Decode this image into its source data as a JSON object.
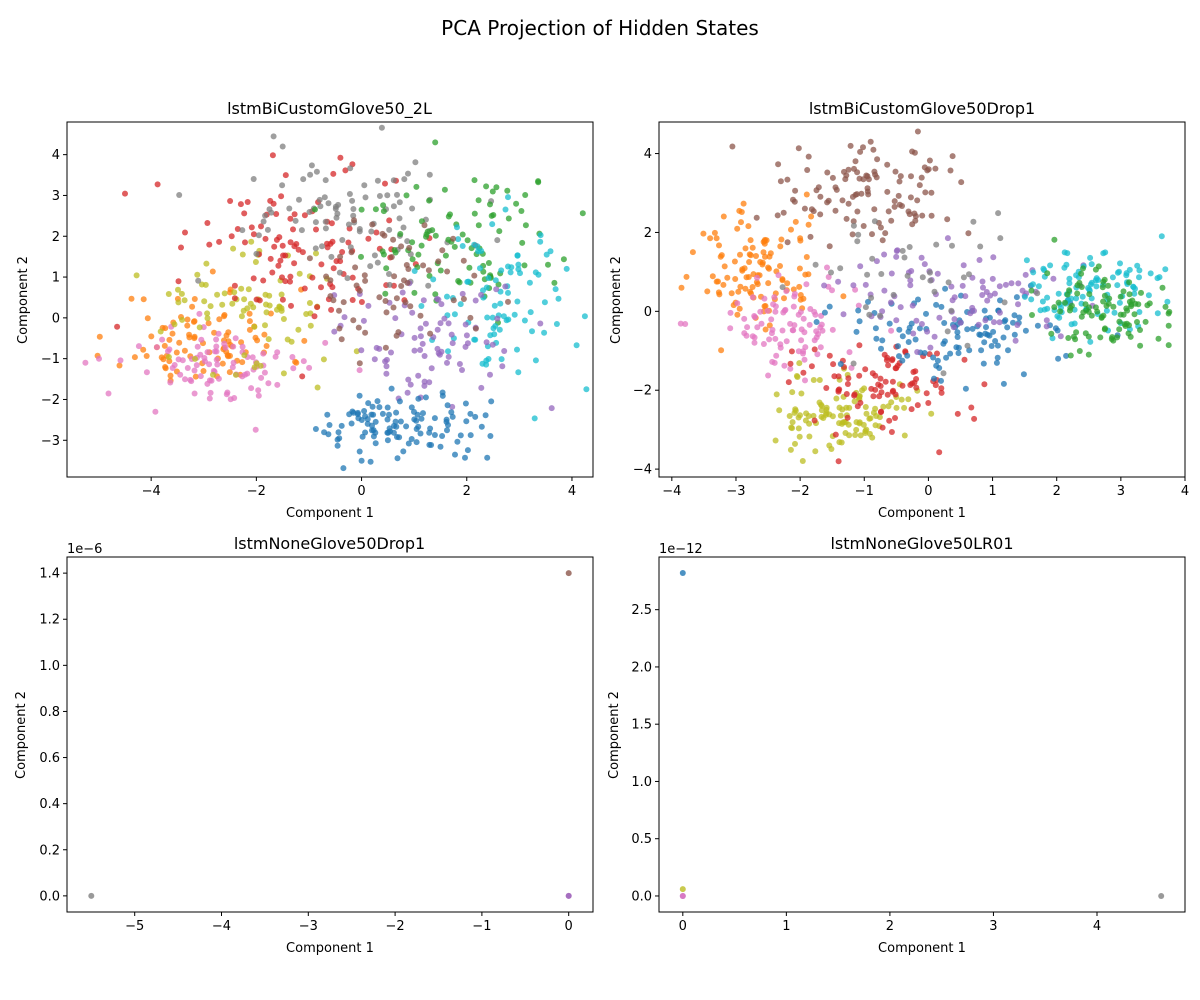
{
  "figure": {
    "suptitle": "PCA Projection of Hidden States"
  },
  "chart_data": [
    {
      "type": "scatter",
      "title": "lstmBiCustomGlove50_2L",
      "xlabel": "Component 1",
      "ylabel": "Component 2",
      "xlim": [
        -5.6,
        4.4
      ],
      "ylim": [
        -3.9,
        4.8
      ],
      "xticks": [
        -4,
        -2,
        0,
        2,
        4
      ],
      "xticklabels": [
        "−4",
        "−2",
        "0",
        "2",
        "4"
      ],
      "yticks": [
        -3,
        -2,
        -1,
        0,
        1,
        2,
        3,
        4
      ],
      "yticklabels": [
        "−3",
        "−2",
        "−1",
        "0",
        "1",
        "2",
        "3",
        "4"
      ],
      "offset_text": "",
      "point_alpha": 0.75,
      "clusters": [
        {
          "color": "#ff7f0e",
          "cx": -3.0,
          "cy": -0.5,
          "sx": 0.8,
          "sy": 0.6,
          "n": 90,
          "seed": 11
        },
        {
          "color": "#e377c2",
          "cx": -2.6,
          "cy": -1.2,
          "sx": 0.9,
          "sy": 0.5,
          "n": 90,
          "seed": 12
        },
        {
          "color": "#bcbd22",
          "cx": -2.2,
          "cy": 0.2,
          "sx": 0.9,
          "sy": 0.8,
          "n": 80,
          "seed": 13
        },
        {
          "color": "#d62728",
          "cx": -1.0,
          "cy": 1.8,
          "sx": 1.2,
          "sy": 1.0,
          "n": 110,
          "seed": 14
        },
        {
          "color": "#7f7f7f",
          "cx": 0.0,
          "cy": 2.6,
          "sx": 1.1,
          "sy": 0.8,
          "n": 90,
          "seed": 15
        },
        {
          "color": "#2ca02c",
          "cx": 1.9,
          "cy": 1.9,
          "sx": 0.9,
          "sy": 0.8,
          "n": 90,
          "seed": 16
        },
        {
          "color": "#17becf",
          "cx": 2.6,
          "cy": 0.3,
          "sx": 0.7,
          "sy": 1.0,
          "n": 90,
          "seed": 17
        },
        {
          "color": "#9467bd",
          "cx": 1.3,
          "cy": -0.6,
          "sx": 0.8,
          "sy": 0.8,
          "n": 80,
          "seed": 18
        },
        {
          "color": "#8c564b",
          "cx": 0.6,
          "cy": 0.8,
          "sx": 0.8,
          "sy": 0.8,
          "n": 60,
          "seed": 19
        },
        {
          "color": "#1f77b4",
          "cx": 0.7,
          "cy": -2.6,
          "sx": 0.8,
          "sy": 0.45,
          "n": 110,
          "seed": 20
        }
      ],
      "points": [
        {
          "x": -5.25,
          "y": -1.1,
          "color": "#e377c2"
        },
        {
          "x": 1.4,
          "y": 4.3,
          "color": "#2ca02c"
        },
        {
          "x": -1.5,
          "y": 4.2,
          "color": "#7f7f7f"
        },
        {
          "x": 3.9,
          "y": 1.2,
          "color": "#17becf"
        },
        {
          "x": 0.0,
          "y": -3.5,
          "color": "#1f77b4"
        }
      ]
    },
    {
      "type": "scatter",
      "title": "lstmBiCustomGlove50Drop1",
      "xlabel": "Component 1",
      "ylabel": "Component 2",
      "xlim": [
        -4.2,
        4.0
      ],
      "ylim": [
        -4.2,
        4.8
      ],
      "xticks": [
        -4,
        -3,
        -2,
        -1,
        0,
        1,
        2,
        3,
        4
      ],
      "xticklabels": [
        "−4",
        "−3",
        "−2",
        "−1",
        "0",
        "1",
        "2",
        "3",
        "4"
      ],
      "yticks": [
        -4,
        -2,
        0,
        2,
        4
      ],
      "yticklabels": [
        "−4",
        "−2",
        "0",
        "2",
        "4"
      ],
      "offset_text": "",
      "point_alpha": 0.75,
      "clusters": [
        {
          "color": "#ff7f0e",
          "cx": -2.7,
          "cy": 1.0,
          "sx": 0.5,
          "sy": 0.8,
          "n": 110,
          "seed": 31
        },
        {
          "color": "#e377c2",
          "cx": -2.2,
          "cy": -0.3,
          "sx": 0.6,
          "sy": 0.6,
          "n": 90,
          "seed": 32
        },
        {
          "color": "#8c564b",
          "cx": -1.0,
          "cy": 3.0,
          "sx": 0.7,
          "sy": 0.6,
          "n": 110,
          "seed": 33
        },
        {
          "color": "#bcbd22",
          "cx": -1.4,
          "cy": -2.6,
          "sx": 0.6,
          "sy": 0.5,
          "n": 110,
          "seed": 34
        },
        {
          "color": "#d62728",
          "cx": -0.7,
          "cy": -1.8,
          "sx": 0.7,
          "sy": 0.6,
          "n": 90,
          "seed": 35
        },
        {
          "color": "#1f77b4",
          "cx": 0.5,
          "cy": -0.5,
          "sx": 0.9,
          "sy": 0.6,
          "n": 110,
          "seed": 36
        },
        {
          "color": "#9467bd",
          "cx": 0.5,
          "cy": 0.4,
          "sx": 0.9,
          "sy": 0.6,
          "n": 90,
          "seed": 37
        },
        {
          "color": "#17becf",
          "cx": 2.5,
          "cy": 0.6,
          "sx": 0.6,
          "sy": 0.5,
          "n": 100,
          "seed": 38
        },
        {
          "color": "#2ca02c",
          "cx": 2.8,
          "cy": 0.0,
          "sx": 0.5,
          "sy": 0.5,
          "n": 100,
          "seed": 39
        },
        {
          "color": "#7f7f7f",
          "cx": -0.3,
          "cy": 0.8,
          "sx": 0.8,
          "sy": 0.8,
          "n": 40,
          "seed": 40
        }
      ],
      "points": [
        {
          "x": -3.85,
          "y": 0.6,
          "color": "#ff7f0e"
        },
        {
          "x": 3.65,
          "y": 0.6,
          "color": "#2ca02c"
        },
        {
          "x": -1.4,
          "y": -3.8,
          "color": "#d62728"
        },
        {
          "x": -0.9,
          "y": 4.3,
          "color": "#8c564b"
        }
      ]
    },
    {
      "type": "scatter",
      "title": "lstmNoneGlove50Drop1",
      "xlabel": "Component 1",
      "ylabel": "Component 2",
      "xlim": [
        -5.78,
        0.28
      ],
      "ylim": [
        -0.07,
        1.47
      ],
      "xticks": [
        -5,
        -4,
        -3,
        -2,
        -1,
        0
      ],
      "xticklabels": [
        "−5",
        "−4",
        "−3",
        "−2",
        "−1",
        "0"
      ],
      "yticks": [
        0.0,
        0.2,
        0.4,
        0.6,
        0.8,
        1.0,
        1.2,
        1.4
      ],
      "yticklabels": [
        "0.0",
        "0.2",
        "0.4",
        "0.6",
        "0.8",
        "1.0",
        "1.2",
        "1.4"
      ],
      "offset_text": "1e−6",
      "point_alpha": 0.8,
      "clusters": [],
      "points": [
        {
          "x": -5.5,
          "y": 0.0,
          "color": "#7f7f7f"
        },
        {
          "x": 0.0,
          "y": 0.0,
          "color": "#e377c2"
        },
        {
          "x": 0.0,
          "y": 0.0,
          "color": "#9467bd"
        },
        {
          "x": 0.0,
          "y": 1.4,
          "color": "#8c564b"
        }
      ]
    },
    {
      "type": "scatter",
      "title": "lstmNoneGlove50LR01",
      "xlabel": "Component 1",
      "ylabel": "Component 2",
      "xlim": [
        -0.23,
        4.85
      ],
      "ylim": [
        -0.14,
        2.96
      ],
      "xticks": [
        0,
        1,
        2,
        3,
        4
      ],
      "xticklabels": [
        "0",
        "1",
        "2",
        "3",
        "4"
      ],
      "yticks": [
        0.0,
        0.5,
        1.0,
        1.5,
        2.0,
        2.5
      ],
      "yticklabels": [
        "0.0",
        "0.5",
        "1.0",
        "1.5",
        "2.0",
        "2.5"
      ],
      "offset_text": "1e−12",
      "point_alpha": 0.8,
      "clusters": [],
      "points": [
        {
          "x": 0.0,
          "y": 2.82,
          "color": "#1f77b4"
        },
        {
          "x": 0.0,
          "y": 0.06,
          "color": "#bcbd22"
        },
        {
          "x": 0.0,
          "y": 0.0,
          "color": "#9467bd"
        },
        {
          "x": 0.0,
          "y": 0.0,
          "color": "#e377c2"
        },
        {
          "x": 4.62,
          "y": 0.0,
          "color": "#7f7f7f"
        }
      ]
    }
  ]
}
